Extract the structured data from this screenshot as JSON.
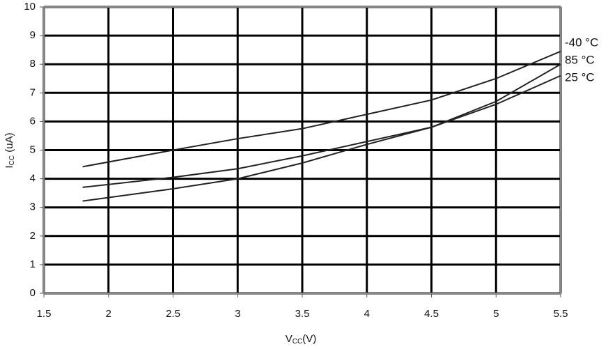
{
  "chart_data": {
    "type": "line",
    "x_label": {
      "main": "V",
      "sub": "CC",
      "rest": "(V)"
    },
    "y_label": {
      "main": "I",
      "sub": "CC",
      "rest": " (uA)"
    },
    "x": [
      1.8,
      2.5,
      3,
      3.5,
      4,
      4.5,
      5,
      5.5
    ],
    "series": [
      {
        "name": "-40 °C",
        "color": "#222222",
        "values": [
          4.42,
          5.0,
          5.4,
          5.75,
          6.25,
          6.75,
          7.5,
          8.45
        ]
      },
      {
        "name": "85 °C",
        "color": "#222222",
        "values": [
          3.7,
          4.05,
          4.35,
          4.8,
          5.3,
          5.8,
          6.7,
          8.0
        ]
      },
      {
        "name": "25 °C",
        "color": "#222222",
        "values": [
          3.22,
          3.65,
          4.0,
          4.55,
          5.2,
          5.8,
          6.6,
          7.6
        ]
      }
    ],
    "xlim": [
      1.5,
      5.5
    ],
    "xticks": [
      1.5,
      2,
      2.5,
      3,
      3.5,
      4,
      4.5,
      5,
      5.5
    ],
    "ylim": [
      0,
      10
    ],
    "yticks": [
      0,
      1,
      2,
      3,
      4,
      5,
      6,
      7,
      8,
      9,
      10
    ],
    "grid": true
  }
}
